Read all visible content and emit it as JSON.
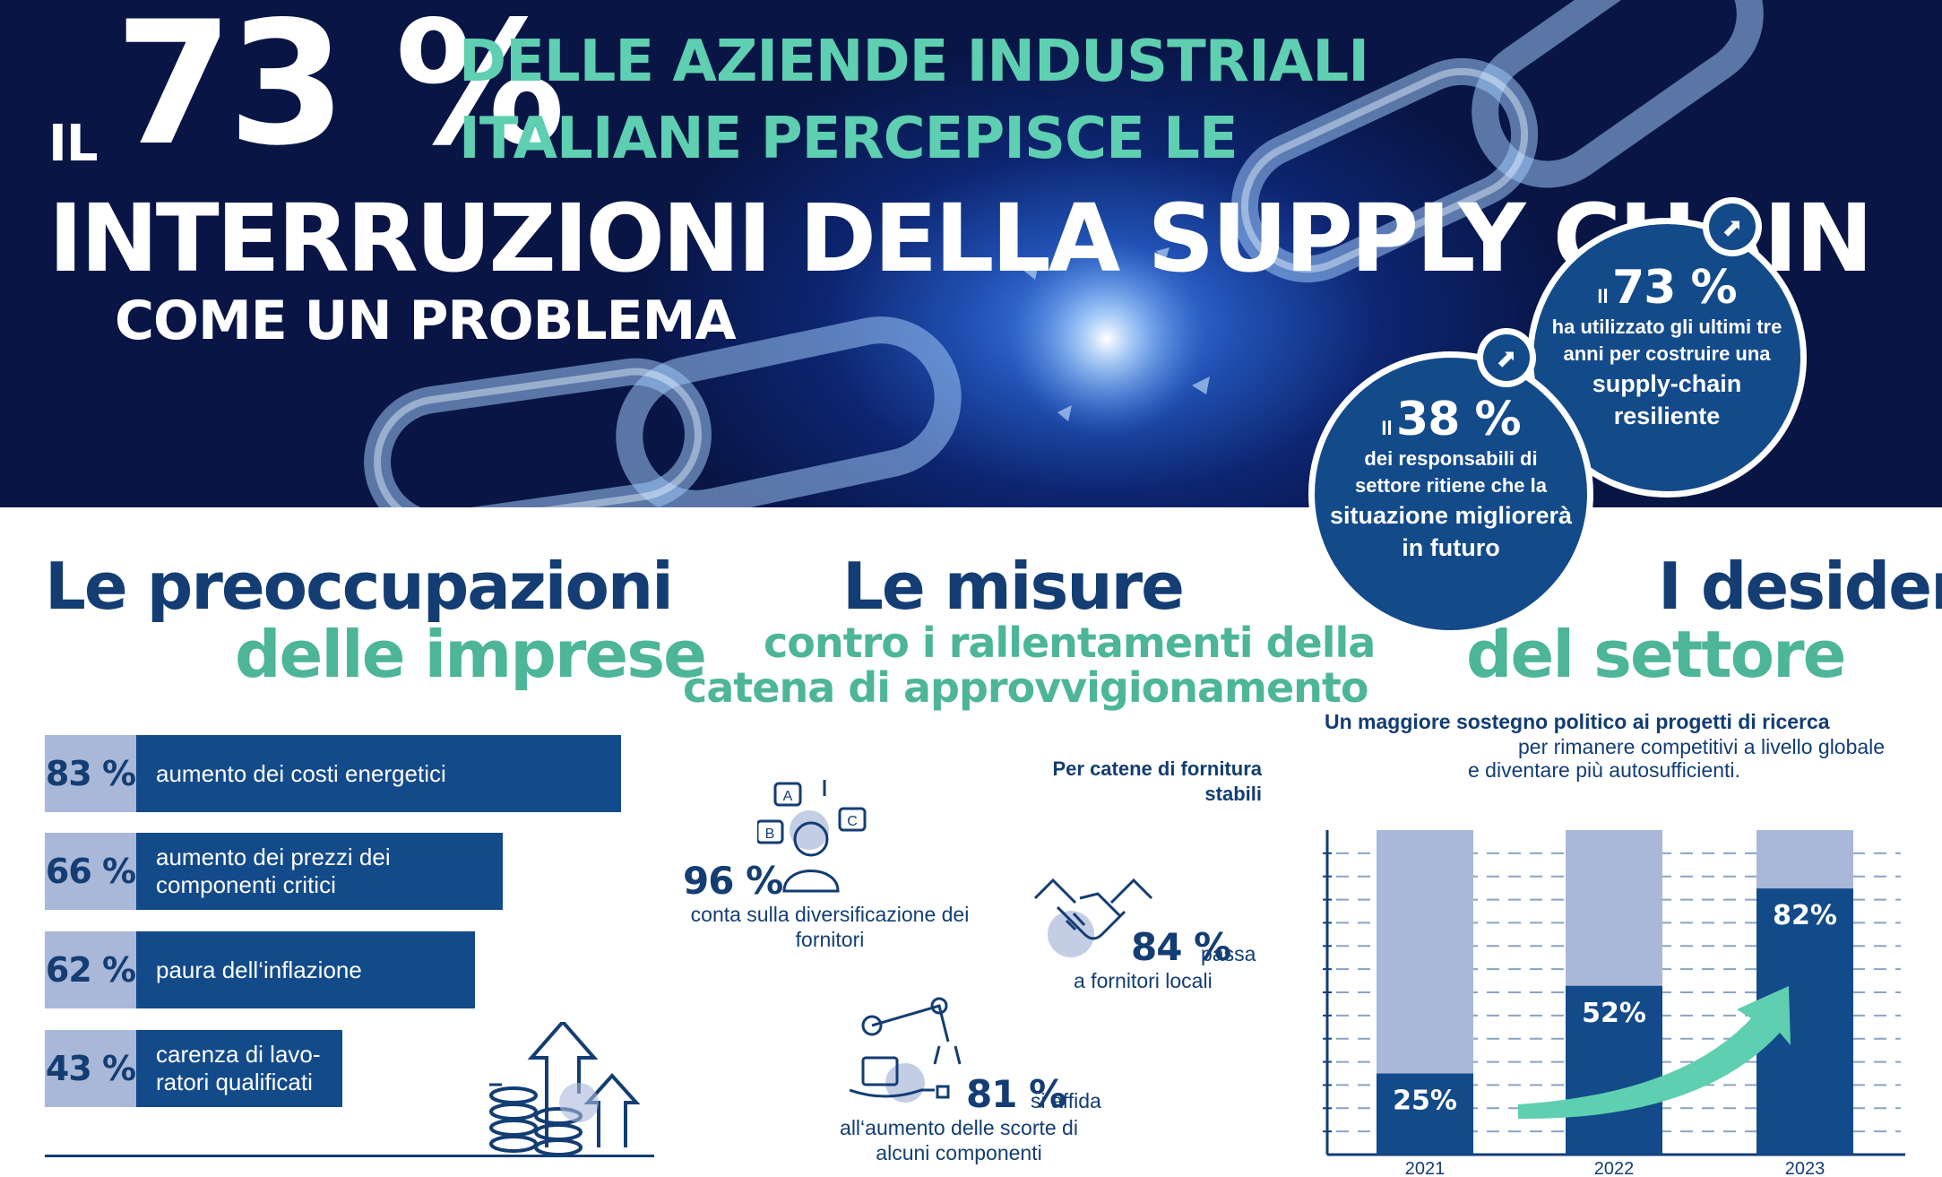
{
  "hero": {
    "il": "IL",
    "percent": "73 %",
    "line1": "DELLE AZIENDE INDUSTRIALI",
    "line2": "ITALIANE PERCEPISCE LE",
    "line3": "INTERRUZIONI DELLA SUPPLY CHAIN",
    "line4": "COME UN PROBLEMA"
  },
  "stats": {
    "circle_73": {
      "il": "Il",
      "value": "73 %",
      "text1": "ha utilizzato gli ultimi tre anni per costruire una",
      "text2": "supply-chain resiliente"
    },
    "circle_38": {
      "il": "Il",
      "value": "38 %",
      "text1": "dei responsabili di settore ritiene che la",
      "text2": "situazione migliorerà in futuro"
    },
    "badge_icon": "arrow-up-right-icon"
  },
  "concerns": {
    "title_dark": "Le preoccupazioni",
    "title_teal": "delle imprese",
    "items": [
      {
        "pct": "83 %",
        "value": 83,
        "label": "aumento dei costi energetici"
      },
      {
        "pct": "66 %",
        "value": 66,
        "label": "aumento dei prezzi dei componenti critici"
      },
      {
        "pct": "62 %",
        "value": 62,
        "label": "paura dell‘inflazione"
      },
      {
        "pct": "43 %",
        "value": 43,
        "label": "carenza di lavo-ratori qualificati"
      }
    ],
    "icon": "coins-rising-arrows-icon"
  },
  "measures": {
    "title_dark": "Le misure",
    "title_teal_1": "contro i rallentamenti della",
    "title_teal_2": "catena di approvvigionamento",
    "note": "Per catene di fornitura stabili",
    "items": [
      {
        "pct": "96 %",
        "text": "conta sulla diversificazione dei fornitori",
        "icon": "person-choices-icon"
      },
      {
        "pct": "84 %",
        "text_inline": "passa",
        "text": "a fornitori locali",
        "icon": "handshake-icon"
      },
      {
        "pct": "81 %",
        "text_inline": "si affida",
        "text": "all‘aumento delle scorte di alcuni componenti",
        "icon": "robot-arm-icon"
      }
    ]
  },
  "wishes": {
    "title_dark": "I desideri",
    "title_teal": "del settore",
    "sub_bold": "Un maggiore sostegno politico ai progetti di ricerca",
    "sub_2": "per rimanere competitivi a livello globale",
    "sub_3": "e diventare più autosufficienti."
  },
  "chart_data": {
    "type": "bar",
    "categories": [
      "2021",
      "2022",
      "2023"
    ],
    "values": [
      25,
      52,
      82
    ],
    "labels": [
      "25%",
      "52%",
      "82%"
    ],
    "ylim": [
      0,
      100
    ],
    "grid": true,
    "colors": {
      "value": "#134a8a",
      "remainder": "#a9b8d8",
      "arrow": "#5ecfb0"
    }
  },
  "colors": {
    "navy": "#133d73",
    "teal": "#4db598",
    "light": "#a9b8d8",
    "bar": "#134a8a"
  }
}
